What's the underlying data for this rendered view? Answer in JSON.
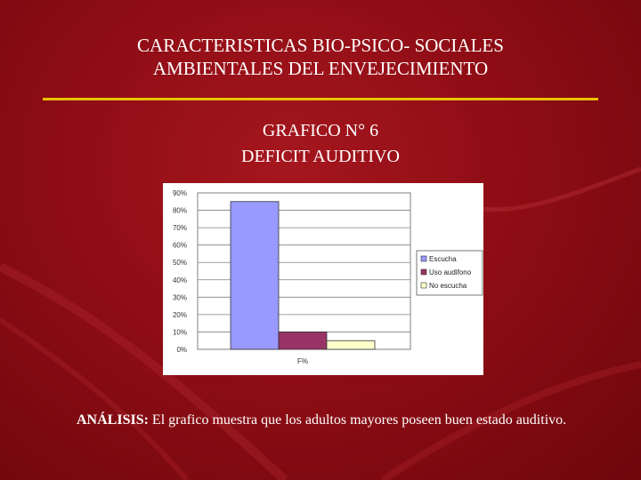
{
  "slide": {
    "title_line1": "CARACTERISTICAS BIO-PSICO- SOCIALES",
    "title_line2": "AMBIENTALES DEL ENVEJECIMIENTO",
    "subtitle_line1": "GRAFICO N° 6",
    "subtitle_line2": "DEFICIT AUDITIVO",
    "analysis_label": "ANÁLISIS:",
    "analysis_text": " El grafico muestra que los adultos mayores  poseen buen estado auditivo."
  },
  "colors": {
    "rule": "#e8c200",
    "bar_escucha": "#9999ff",
    "bar_uso_audifono": "#993366",
    "bar_no_escucha": "#ffffcc",
    "plot_bg": "#ffffff",
    "gridline": "#808080"
  },
  "chart_data": {
    "type": "bar",
    "categories": [
      "F%"
    ],
    "series": [
      {
        "name": "Escucha",
        "values": [
          85
        ]
      },
      {
        "name": "Uso audifono",
        "values": [
          10
        ]
      },
      {
        "name": "No escucha",
        "values": [
          5
        ]
      }
    ],
    "yticks": [
      "0%",
      "10%",
      "20%",
      "30%",
      "40%",
      "50%",
      "60%",
      "70%",
      "80%",
      "90%"
    ],
    "ylim": [
      0,
      90
    ],
    "grid": true,
    "legend": "right"
  }
}
